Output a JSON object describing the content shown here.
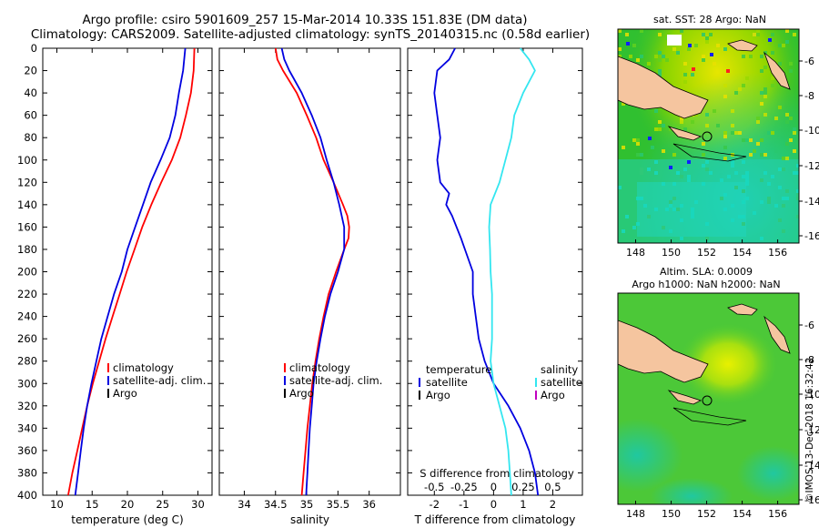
{
  "title_line1": "Argo profile: csiro 5901609_257 15-Mar-2014 10.33S 151.83E (DM data)",
  "title_line2": "Climatology: CARS2009. Satellite-adjusted climatology: synTS_20140315.nc (0.58d earlier)",
  "watermark": "©IMOS 13-Dec-2018 16:32:42",
  "colors": {
    "climatology": "#ff0000",
    "satellite": "#0000e0",
    "argo": "#000000",
    "sal_sat": "#33e6f0",
    "sal_argo": "#c000c0"
  },
  "depth_axis": {
    "range": [
      0,
      400
    ],
    "ticks": [
      "0",
      "20",
      "40",
      "60",
      "80",
      "100",
      "120",
      "140",
      "160",
      "180",
      "200",
      "220",
      "240",
      "260",
      "280",
      "300",
      "320",
      "340",
      "360",
      "380",
      "400"
    ]
  },
  "chart_data": [
    {
      "type": "line",
      "id": "temperature",
      "xlabel": "temperature (deg C)",
      "xlim": [
        8,
        32
      ],
      "xticks": [
        {
          "v": 10,
          "l": "10"
        },
        {
          "v": 15,
          "l": "15"
        },
        {
          "v": 20,
          "l": "20"
        },
        {
          "v": 25,
          "l": "25"
        },
        {
          "v": 30,
          "l": "30"
        }
      ],
      "legend": [
        "climatology",
        "satellite-adj. clim.",
        "Argo"
      ],
      "series": [
        {
          "name": "climatology",
          "color": "climatology",
          "depth": [
            0,
            20,
            40,
            60,
            80,
            100,
            120,
            140,
            160,
            180,
            200,
            220,
            240,
            260,
            280,
            300,
            320,
            340,
            360,
            380,
            400
          ],
          "values": [
            29.5,
            29.4,
            29.0,
            28.3,
            27.5,
            26.3,
            24.8,
            23.4,
            22.1,
            21.0,
            19.9,
            18.9,
            17.9,
            16.9,
            16.0,
            15.1,
            14.3,
            13.6,
            12.9,
            12.2,
            11.6
          ]
        },
        {
          "name": "satellite-adj. clim.",
          "color": "satellite",
          "depth": [
            0,
            20,
            40,
            60,
            80,
            100,
            120,
            140,
            160,
            180,
            200,
            220,
            240,
            260,
            280,
            300,
            320,
            340,
            360,
            380,
            400
          ],
          "values": [
            28.2,
            27.9,
            27.3,
            26.8,
            26.0,
            24.7,
            23.3,
            22.2,
            21.1,
            20.0,
            19.2,
            18.1,
            17.2,
            16.3,
            15.6,
            14.9,
            14.3,
            13.8,
            13.4,
            13.0,
            12.6
          ]
        }
      ]
    },
    {
      "type": "line",
      "id": "salinity",
      "xlabel": "salinity",
      "xlim": [
        33.6,
        36.5
      ],
      "xticks": [
        {
          "v": 34,
          "l": "34"
        },
        {
          "v": 34.5,
          "l": "34.5"
        },
        {
          "v": 35,
          "l": "35"
        },
        {
          "v": 35.5,
          "l": "35.5"
        },
        {
          "v": 36,
          "l": "36"
        }
      ],
      "legend": [
        "climatology",
        "satellite-adj. clim.",
        "Argo"
      ],
      "series": [
        {
          "name": "climatology",
          "color": "climatology",
          "depth": [
            0,
            10,
            20,
            40,
            60,
            80,
            100,
            120,
            140,
            150,
            160,
            170,
            180,
            200,
            220,
            240,
            260,
            280,
            300,
            320,
            340,
            360,
            380,
            400
          ],
          "values": [
            34.5,
            34.53,
            34.62,
            34.84,
            35.0,
            35.15,
            35.27,
            35.43,
            35.58,
            35.65,
            35.68,
            35.67,
            35.6,
            35.47,
            35.35,
            35.27,
            35.2,
            35.14,
            35.09,
            35.05,
            35.01,
            34.98,
            34.95,
            34.92
          ]
        },
        {
          "name": "satellite-adj. clim.",
          "color": "satellite",
          "depth": [
            0,
            10,
            20,
            40,
            60,
            80,
            100,
            120,
            140,
            160,
            180,
            200,
            220,
            240,
            260,
            280,
            300,
            320,
            340,
            360,
            380,
            400
          ],
          "values": [
            34.6,
            34.64,
            34.72,
            34.92,
            35.08,
            35.22,
            35.32,
            35.43,
            35.52,
            35.6,
            35.6,
            35.5,
            35.38,
            35.29,
            35.22,
            35.16,
            35.11,
            35.08,
            35.05,
            35.03,
            35.01,
            34.99
          ]
        }
      ]
    },
    {
      "type": "line",
      "id": "difference",
      "xlabel": "T difference from climatology",
      "xlim": [
        -2.9,
        3.0
      ],
      "xticks": [
        {
          "v": -2,
          "l": "-2"
        },
        {
          "v": -1,
          "l": "-1"
        },
        {
          "v": 0,
          "l": "0"
        },
        {
          "v": 1,
          "l": "1"
        },
        {
          "v": 2,
          "l": "2"
        }
      ],
      "top_label": "S difference from climatology",
      "top_ticks": [
        {
          "v": -2,
          "l": "-0.5"
        },
        {
          "v": -1,
          "l": "-0.25"
        },
        {
          "v": 0,
          "l": "0"
        },
        {
          "v": 1,
          "l": "0.25"
        },
        {
          "v": 2,
          "l": "0.5"
        }
      ],
      "legend_left": {
        "head": "temperature",
        "items": [
          "satellite",
          "Argo"
        ]
      },
      "legend_right": {
        "head": "salinity",
        "items": [
          "satellite",
          "Argo"
        ]
      },
      "series": [
        {
          "name": "temperature satellite",
          "color": "satellite",
          "depth": [
            0,
            10,
            20,
            40,
            60,
            80,
            100,
            120,
            130,
            140,
            150,
            170,
            200,
            220,
            240,
            260,
            280,
            300,
            320,
            340,
            360,
            380,
            400
          ],
          "values": [
            -1.3,
            -1.5,
            -1.9,
            -2.0,
            -1.9,
            -1.8,
            -1.9,
            -1.8,
            -1.5,
            -1.6,
            -1.4,
            -1.1,
            -0.7,
            -0.7,
            -0.6,
            -0.5,
            -0.3,
            0.0,
            0.5,
            0.9,
            1.2,
            1.4,
            1.5
          ]
        },
        {
          "name": "salinity satellite",
          "color": "sal_sat",
          "depth": [
            0,
            10,
            20,
            40,
            60,
            80,
            100,
            120,
            140,
            160,
            180,
            200,
            220,
            240,
            260,
            280,
            300,
            320,
            340,
            360,
            380,
            400
          ],
          "values": [
            0.9,
            1.2,
            1.4,
            1.0,
            0.7,
            0.6,
            0.4,
            0.2,
            -0.1,
            -0.15,
            -0.12,
            -0.1,
            -0.05,
            -0.05,
            -0.05,
            -0.1,
            0.0,
            0.2,
            0.4,
            0.5,
            0.55,
            0.6
          ]
        }
      ]
    }
  ],
  "map_sst": {
    "title": "sat. SST: 28 Argo: NaN",
    "xticks": [
      "148",
      "150",
      "152",
      "154",
      "156"
    ],
    "yticks": [
      "-6",
      "-8",
      "-10",
      "-12",
      "-14",
      "-16"
    ]
  },
  "map_sla": {
    "title1": "Altim. SLA: 0.0009",
    "title2": "Argo h1000: NaN h2000: NaN",
    "xticks": [
      "148",
      "150",
      "152",
      "154",
      "156"
    ],
    "yticks": [
      "-6",
      "-8",
      "-10",
      "-12",
      "-14",
      "-16"
    ]
  }
}
